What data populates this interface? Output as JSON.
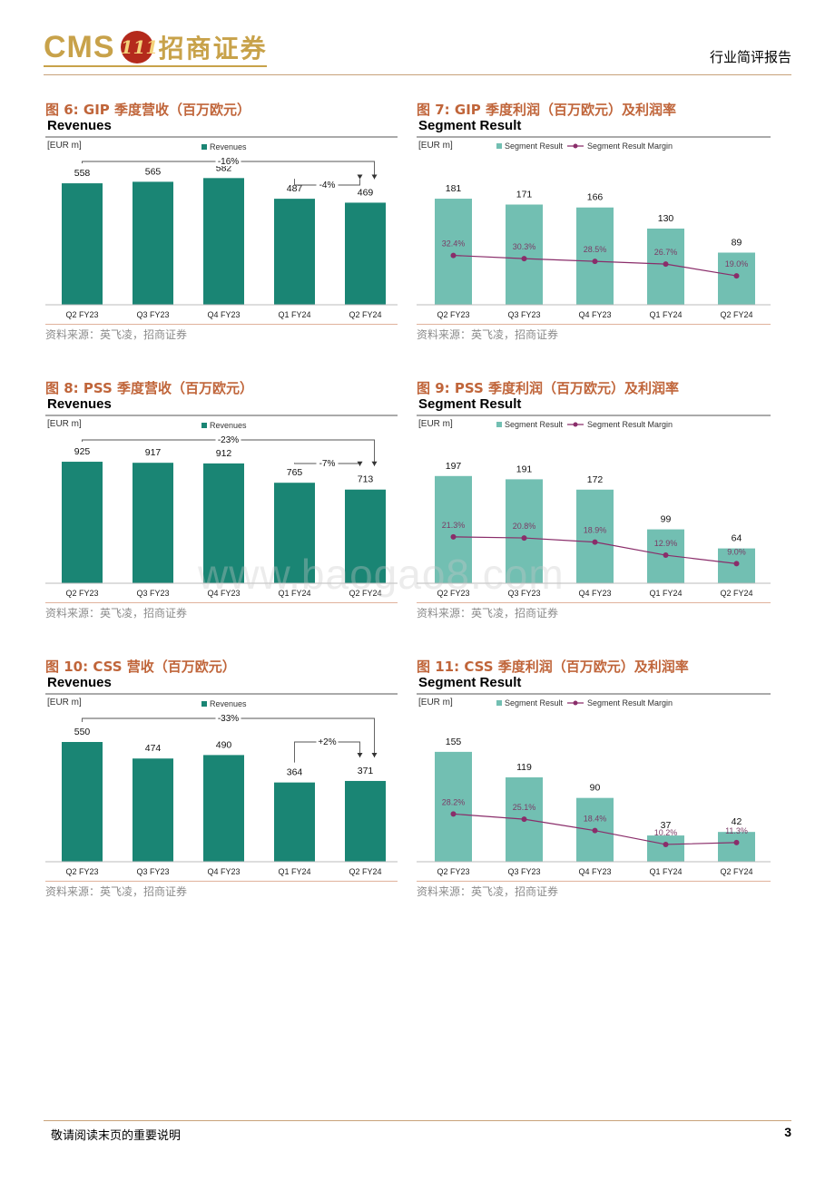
{
  "header": {
    "logo_text": "CMS",
    "logo_badge": "111",
    "logo_cn": "招商证券",
    "report_type": "行业简评报告"
  },
  "colors": {
    "revenue_bar": "#1a8574",
    "segment_bar": "#72bfb2",
    "margin_line": "#8a2d6a",
    "title_accent": "#c0653a"
  },
  "panels": [
    {
      "fig_title": "图 6:  GIP 季度营收（百万欧元）",
      "chart_title": "Revenues",
      "source": "资料来源：英飞凌，招商证券"
    },
    {
      "fig_title": "图 7:  GIP 季度利润（百万欧元）及利润率",
      "chart_title": "Segment Result",
      "source": "资料来源：英飞凌，招商证券"
    },
    {
      "fig_title": "图 8:  PSS 季度营收（百万欧元）",
      "chart_title": "Revenues",
      "source": "资料来源：英飞凌，招商证券"
    },
    {
      "fig_title": "图 9:  PSS 季度利润（百万欧元）及利润率",
      "chart_title": "Segment Result",
      "source": "资料来源：英飞凌，招商证券"
    },
    {
      "fig_title": "图 10:  CSS 营收（百万欧元）",
      "chart_title": "Revenues",
      "source": "资料来源：英飞凌，招商证券"
    },
    {
      "fig_title": "图 11:  CSS 季度利润（百万欧元）及利润率",
      "chart_title": "Segment Result",
      "source": "资料来源：英飞凌，招商证券"
    }
  ],
  "chart_data": [
    {
      "type": "bar",
      "title": "Revenues",
      "unit_label": "[EUR m]",
      "legend": [
        "Revenues"
      ],
      "categories": [
        "Q2 FY23",
        "Q3 FY23",
        "Q4 FY23",
        "Q1 FY24",
        "Q2 FY24"
      ],
      "series": [
        {
          "name": "Revenues",
          "values": [
            558,
            565,
            582,
            487,
            469
          ]
        }
      ],
      "ylim": [
        0,
        700
      ],
      "annotations": [
        {
          "label": "-16%",
          "from": "Q2 FY23",
          "to": "Q2 FY24"
        },
        {
          "label": "-4%",
          "from": "Q1 FY24",
          "to": "Q2 FY24"
        }
      ]
    },
    {
      "type": "bar",
      "title": "Segment Result",
      "unit_label": "[EUR m]",
      "legend": [
        "Segment Result",
        "Segment Result Margin"
      ],
      "categories": [
        "Q2 FY23",
        "Q3 FY23",
        "Q4 FY23",
        "Q1 FY24",
        "Q2 FY24"
      ],
      "series": [
        {
          "name": "Segment Result",
          "values": [
            181,
            171,
            166,
            130,
            89
          ]
        },
        {
          "name": "Segment Result Margin",
          "values": [
            32.4,
            30.3,
            28.5,
            26.7,
            19.0
          ],
          "labels": [
            "32.4%",
            "30.3%",
            "28.5%",
            "26.7%",
            "19.0%"
          ]
        }
      ],
      "ylim": [
        0,
        260
      ],
      "margin_ylim": [
        0,
        100
      ]
    },
    {
      "type": "bar",
      "title": "Revenues",
      "unit_label": "[EUR m]",
      "legend": [
        "Revenues"
      ],
      "categories": [
        "Q2 FY23",
        "Q3 FY23",
        "Q4 FY23",
        "Q1 FY24",
        "Q2 FY24"
      ],
      "series": [
        {
          "name": "Revenues",
          "values": [
            925,
            917,
            912,
            765,
            713
          ]
        }
      ],
      "ylim": [
        0,
        1160
      ],
      "annotations": [
        {
          "label": "-23%",
          "from": "Q2 FY23",
          "to": "Q2 FY24"
        },
        {
          "label": "-7%",
          "from": "Q1 FY24",
          "to": "Q2 FY24"
        }
      ]
    },
    {
      "type": "bar",
      "title": "Segment Result",
      "unit_label": "[EUR m]",
      "legend": [
        "Segment Result",
        "Segment Result Margin"
      ],
      "categories": [
        "Q2 FY23",
        "Q3 FY23",
        "Q4 FY23",
        "Q1 FY24",
        "Q2 FY24"
      ],
      "series": [
        {
          "name": "Segment Result",
          "values": [
            197,
            191,
            172,
            99,
            64
          ]
        },
        {
          "name": "Segment Result Margin",
          "values": [
            21.3,
            20.8,
            18.9,
            12.9,
            9.0
          ],
          "labels": [
            "21.3%",
            "20.8%",
            "18.9%",
            "12.9%",
            "9.0%"
          ]
        }
      ],
      "ylim": [
        0,
        280
      ],
      "margin_ylim": [
        0,
        70
      ]
    },
    {
      "type": "bar",
      "title": "Revenues",
      "unit_label": "[EUR m]",
      "legend": [
        "Revenues"
      ],
      "categories": [
        "Q2 FY23",
        "Q3 FY23",
        "Q4 FY23",
        "Q1 FY24",
        "Q2 FY24"
      ],
      "series": [
        {
          "name": "Revenues",
          "values": [
            550,
            474,
            490,
            364,
            371
          ]
        }
      ],
      "ylim": [
        0,
        700
      ],
      "annotations": [
        {
          "label": "-33%",
          "from": "Q2 FY23",
          "to": "Q2 FY24"
        },
        {
          "label": "+2%",
          "from": "Q1 FY24",
          "to": "Q2 FY24"
        }
      ]
    },
    {
      "type": "bar",
      "title": "Segment Result",
      "unit_label": "[EUR m]",
      "legend": [
        "Segment Result",
        "Segment Result Margin"
      ],
      "categories": [
        "Q2 FY23",
        "Q3 FY23",
        "Q4 FY23",
        "Q1 FY24",
        "Q2 FY24"
      ],
      "series": [
        {
          "name": "Segment Result",
          "values": [
            155,
            119,
            90,
            37,
            42
          ]
        },
        {
          "name": "Segment Result Margin",
          "values": [
            28.2,
            25.1,
            18.4,
            10.2,
            11.3
          ],
          "labels": [
            "28.2%",
            "25.1%",
            "18.4%",
            "10.2%",
            "11.3%"
          ]
        }
      ],
      "ylim": [
        0,
        215
      ],
      "margin_ylim": [
        0,
        90
      ]
    }
  ],
  "watermark": "www.baogao8.com",
  "footer": {
    "notice": "敬请阅读末页的重要说明",
    "page_number": "3"
  }
}
